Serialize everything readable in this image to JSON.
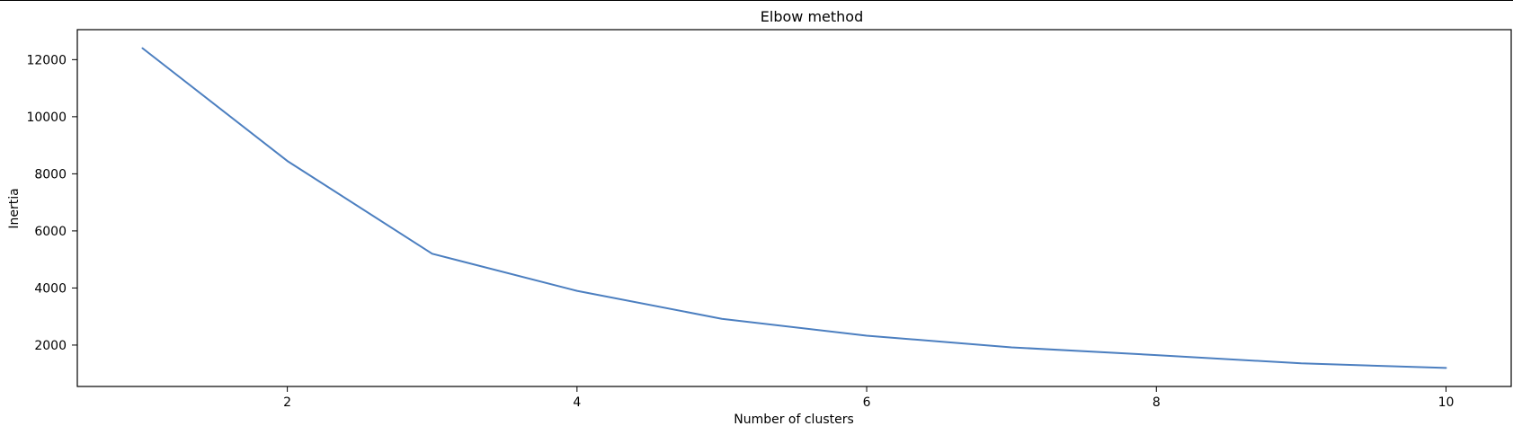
{
  "chart_data": {
    "type": "line",
    "title": "Elbow method",
    "xlabel": "Number of clusters",
    "ylabel": "Inertia",
    "xlim": [
      0.55,
      10.45
    ],
    "ylim": [
      550,
      13050
    ],
    "xticks": [
      2,
      4,
      6,
      8,
      10
    ],
    "yticks": [
      2000,
      4000,
      6000,
      8000,
      10000,
      12000
    ],
    "grid": false,
    "series": [
      {
        "x": [
          1,
          2,
          3,
          4,
          5,
          6,
          7,
          8,
          9,
          10
        ],
        "values": [
          12400,
          8450,
          5200,
          3900,
          2920,
          2330,
          1920,
          1650,
          1360,
          1200
        ],
        "color": "#4c7fc0"
      }
    ]
  }
}
